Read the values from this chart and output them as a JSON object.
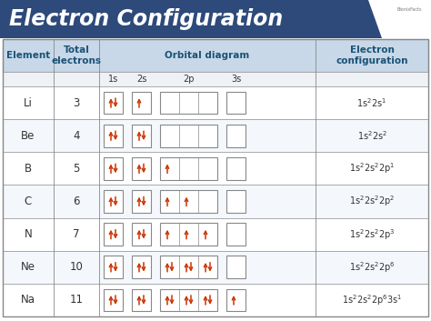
{
  "title": "Electron Configuration",
  "title_bg": "#2d4a7a",
  "title_text_color": "#ffffff",
  "header_bg": "#c8d8e8",
  "header_text_color": "#1a5276",
  "body_bg": "#ffffff",
  "border_color": "#888888",
  "arrow_color": "#cc3300",
  "elements": [
    "Li",
    "Be",
    "B",
    "C",
    "N",
    "Ne",
    "Na"
  ],
  "electrons": [
    3,
    4,
    5,
    6,
    7,
    10,
    11
  ],
  "orbital_fill": [
    {
      "1s": 2,
      "2s": 1,
      "2p": [
        0,
        0,
        0
      ],
      "3s": 0
    },
    {
      "1s": 2,
      "2s": 2,
      "2p": [
        0,
        0,
        0
      ],
      "3s": 0
    },
    {
      "1s": 2,
      "2s": 2,
      "2p": [
        1,
        0,
        0
      ],
      "3s": 0
    },
    {
      "1s": 2,
      "2s": 2,
      "2p": [
        1,
        1,
        0
      ],
      "3s": 0
    },
    {
      "1s": 2,
      "2s": 2,
      "2p": [
        1,
        1,
        1
      ],
      "3s": 0
    },
    {
      "1s": 2,
      "2s": 2,
      "2p": [
        2,
        2,
        2
      ],
      "3s": 0
    },
    {
      "1s": 2,
      "2s": 2,
      "2p": [
        2,
        2,
        2
      ],
      "3s": 1
    }
  ]
}
